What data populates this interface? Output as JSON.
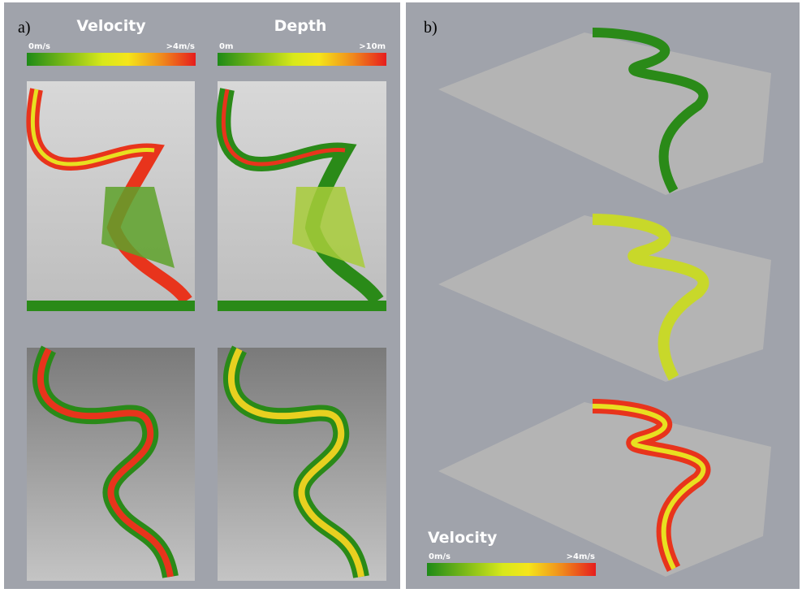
{
  "panel_a": {
    "label": "a)",
    "velocity": {
      "title": "Velocity",
      "min_label": "0m/s",
      "max_label": ">4m/s"
    },
    "depth": {
      "title": "Depth",
      "min_label": "0m",
      "max_label": ">10m"
    }
  },
  "panel_b": {
    "label": "b)",
    "legend": {
      "title": "Velocity",
      "min_label": "0m/s",
      "max_label": ">4m/s"
    }
  }
}
